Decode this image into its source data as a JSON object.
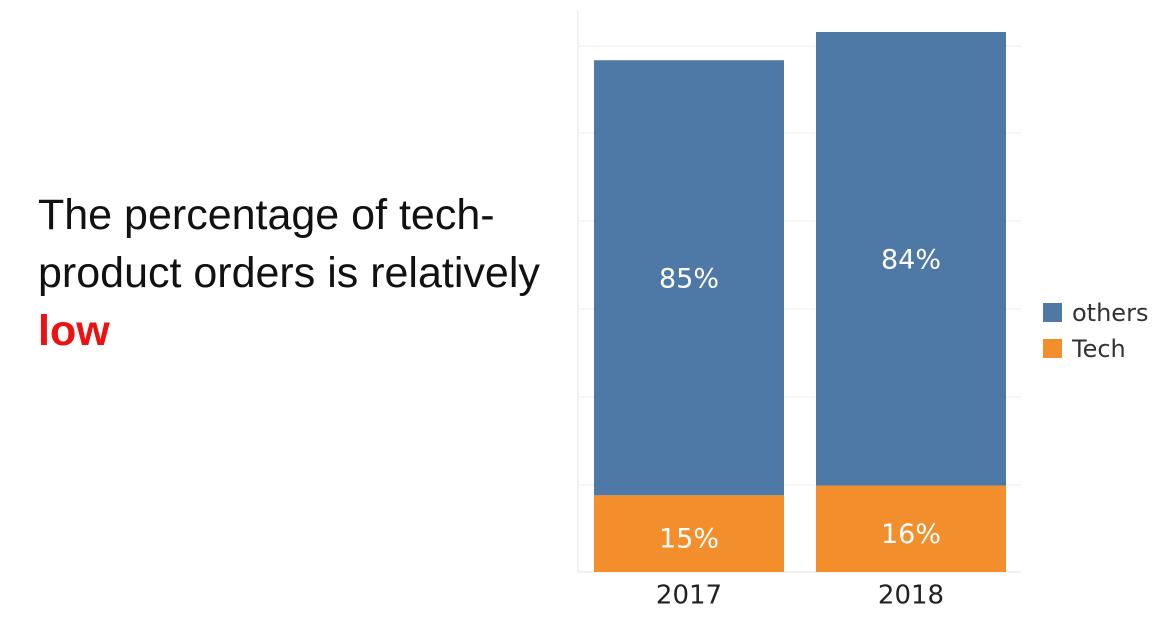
{
  "headline": {
    "text_before": "The percentage of tech-product orders is relatively ",
    "emphasis": "low"
  },
  "chart_data": {
    "type": "bar",
    "stacked": true,
    "categories": [
      "2017",
      "2018"
    ],
    "series": [
      {
        "name": "Tech",
        "values": [
          15,
          16
        ],
        "labels": [
          "15%",
          "16%"
        ],
        "color": "#f28e2b"
      },
      {
        "name": "others",
        "values": [
          85,
          84
        ],
        "labels": [
          "85%",
          "84%"
        ],
        "color": "#4e79a7"
      }
    ],
    "legend": {
      "position": "right",
      "order": [
        "others",
        "Tech"
      ]
    },
    "grid": true,
    "y_tick_labels_shown": false,
    "colors": {
      "others": "#4e79a7",
      "Tech": "#f28e2b",
      "emphasis": "#ee1111"
    }
  }
}
